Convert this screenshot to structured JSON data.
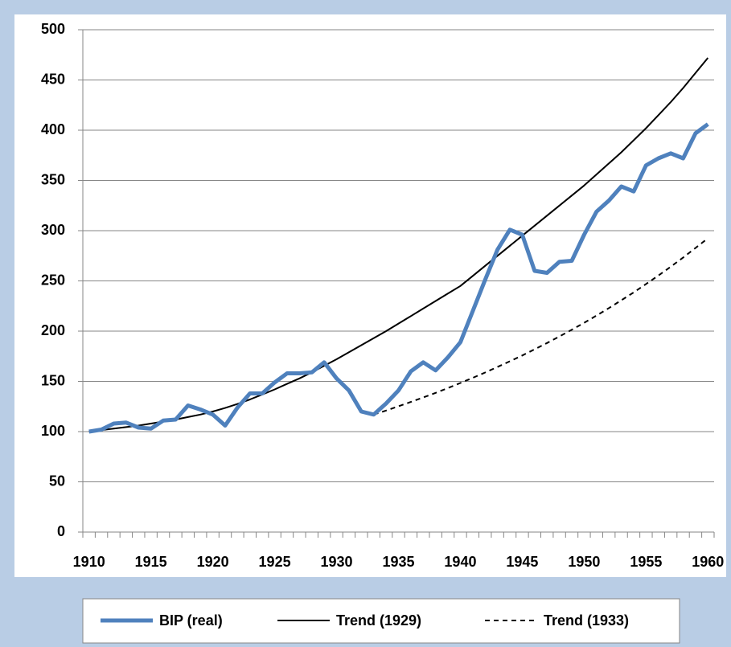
{
  "chart_data": {
    "type": "line",
    "categories": [
      "1910",
      null,
      null,
      null,
      null,
      "1915",
      null,
      null,
      null,
      null,
      "1920",
      null,
      null,
      null,
      null,
      "1925",
      null,
      null,
      null,
      null,
      "1930",
      null,
      null,
      null,
      null,
      "1935",
      null,
      null,
      null,
      null,
      "1940",
      null,
      null,
      null,
      null,
      "1945",
      null,
      null,
      null,
      null,
      "1950",
      null,
      null,
      null,
      null,
      "1955",
      null,
      null,
      null,
      null,
      "1960"
    ],
    "series": [
      {
        "name": "BIP (real)",
        "color": "#4f81bd",
        "dash": false,
        "values": [
          100,
          102,
          108,
          109,
          104,
          103,
          111,
          112,
          126,
          122,
          117,
          106,
          124,
          138,
          138,
          149,
          158,
          158,
          159,
          169,
          153,
          141,
          120,
          117,
          128,
          141,
          160,
          169,
          161,
          174,
          189,
          220,
          251,
          281,
          301,
          296,
          260,
          258,
          269,
          270,
          296,
          319,
          330,
          344,
          339,
          365,
          372,
          377,
          372,
          397,
          406
        ]
      },
      {
        "name": "Trend (1929)",
        "color": "#000000",
        "dash": false,
        "values": [
          100,
          101.5,
          103,
          104.5,
          106,
          108,
          110,
          112,
          114.5,
          117,
          120,
          123.5,
          127.5,
          132,
          137,
          142,
          147.5,
          153,
          159,
          165.5,
          172,
          179,
          186,
          193,
          200,
          207.5,
          215,
          222.5,
          230,
          237.5,
          245,
          255,
          265,
          275,
          285,
          295,
          305,
          315,
          325,
          335,
          345,
          356,
          367,
          378,
          390,
          402,
          415,
          428,
          442,
          457,
          472
        ]
      },
      {
        "name": "Trend (1933)",
        "color": "#000000",
        "dash": true,
        "values": [
          null,
          null,
          null,
          null,
          null,
          null,
          null,
          null,
          null,
          null,
          null,
          null,
          null,
          null,
          null,
          null,
          null,
          null,
          null,
          null,
          null,
          null,
          null,
          117,
          121,
          125.2,
          129.5,
          134,
          138.6,
          143.4,
          148.4,
          153.5,
          158.8,
          164.3,
          170,
          175.8,
          181.9,
          188.2,
          194.7,
          201.4,
          208.3,
          215.5,
          223,
          230.7,
          238.6,
          246.9,
          255.4,
          264.2,
          273.3,
          282.8,
          292.5
        ]
      }
    ],
    "ylim": [
      0,
      500
    ],
    "yticks": [
      0,
      50,
      100,
      150,
      200,
      250,
      300,
      350,
      400,
      450,
      500
    ],
    "grid": true,
    "legend": "bottom"
  }
}
